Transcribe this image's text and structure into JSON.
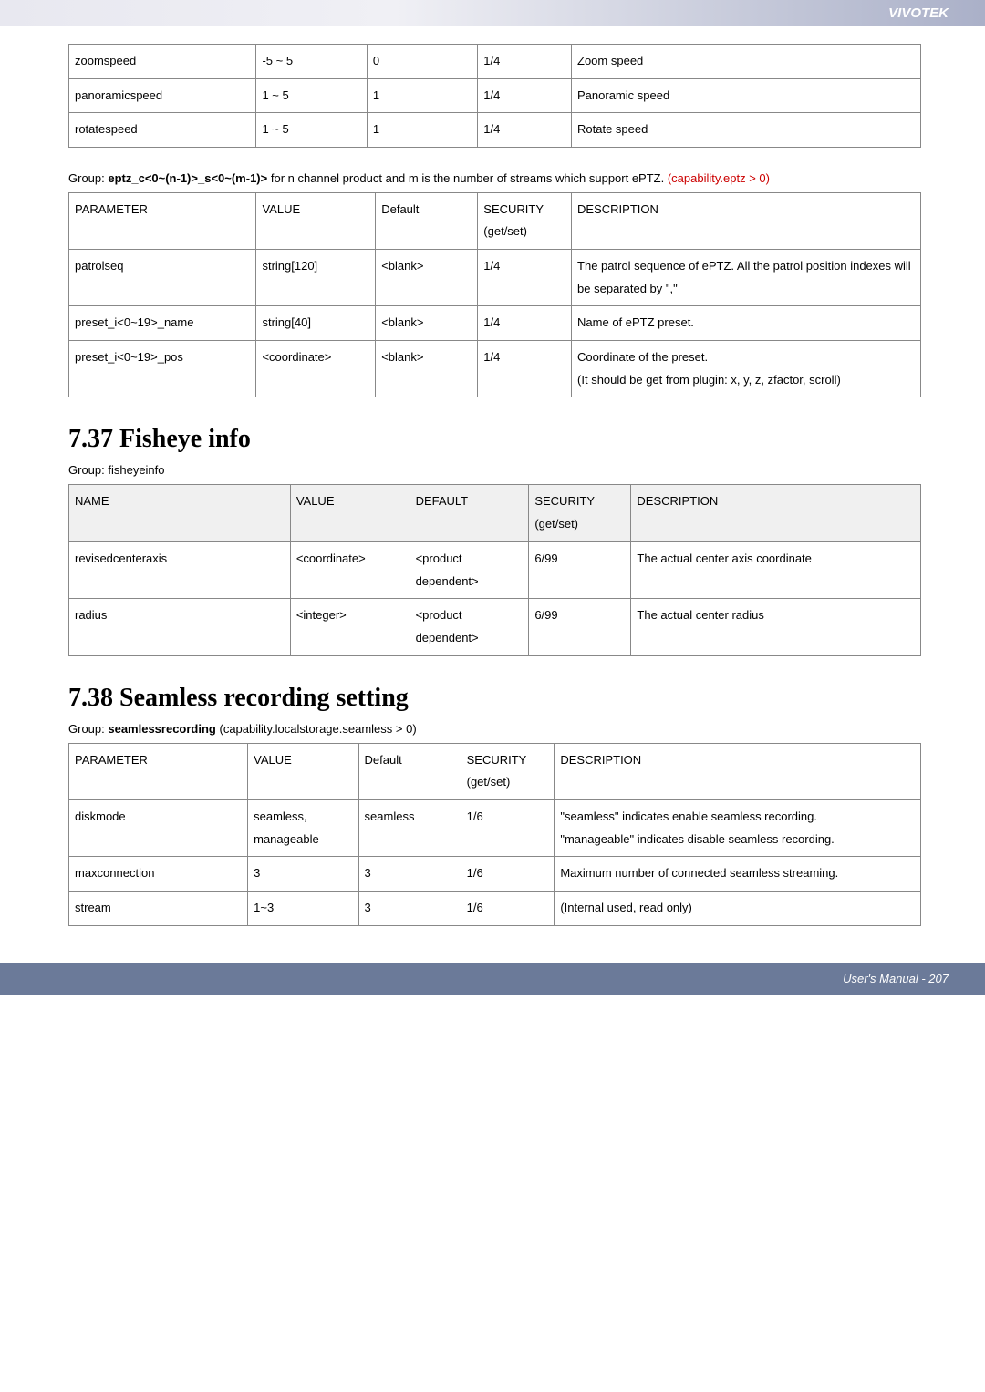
{
  "header": {
    "brand": "VIVOTEK"
  },
  "table1": {
    "rows": [
      {
        "param": "zoomspeed",
        "value": "-5 ~ 5",
        "default": "0",
        "security": "1/4",
        "desc": "Zoom speed"
      },
      {
        "param": "panoramicspeed",
        "value": "1 ~ 5",
        "default": "1",
        "security": "1/4",
        "desc": "Panoramic speed"
      },
      {
        "param": "rotatespeed",
        "value": "1 ~ 5",
        "default": "1",
        "security": "1/4",
        "desc": "Rotate speed"
      }
    ]
  },
  "group2": {
    "prefix": "Group: ",
    "code": "eptz_c<0~(n-1)>_s<0~(m-1)>",
    "mid": " for n channel product and m is the number of streams which support ePTZ. ",
    "cond": "(capability.eptz > 0)"
  },
  "table2": {
    "headers": {
      "param": "PARAMETER",
      "value": "VALUE",
      "default": "Default",
      "security": "SECURITY (get/set)",
      "desc": "DESCRIPTION"
    },
    "rows": [
      {
        "param": "patrolseq",
        "value": "string[120]",
        "default": "<blank>",
        "security": "1/4",
        "desc": "The patrol sequence of ePTZ. All the patrol position indexes will be separated by \",\""
      },
      {
        "param": "preset_i<0~19>_name",
        "value": "string[40]",
        "default": "<blank>",
        "security": "1/4",
        "desc": "Name of ePTZ preset."
      },
      {
        "param": "preset_i<0~19>_pos",
        "value": "<coordinate>",
        "default": "<blank>",
        "security": "1/4",
        "desc": "Coordinate of the preset.\n(It should be get from plugin: x, y, z, zfactor, scroll)"
      }
    ]
  },
  "section737": {
    "title": "7.37 Fisheye info",
    "group": "Group: fisheyeinfo"
  },
  "table3": {
    "headers": {
      "name": "NAME",
      "value": "VALUE",
      "default": "DEFAULT",
      "security": "SECURITY (get/set)",
      "desc": "DESCRIPTION"
    },
    "rows": [
      {
        "name": "revisedcenteraxis",
        "value": "<coordinate>",
        "default": "<product dependent>",
        "security": "6/99",
        "desc": "The actual center axis coordinate"
      },
      {
        "name": "radius",
        "value": "<integer>",
        "default": "<product dependent>",
        "security": "6/99",
        "desc": "The actual center radius"
      }
    ]
  },
  "section738": {
    "title": "7.38 Seamless recording setting",
    "group_prefix": "Group: ",
    "group_code": "seamlessrecording",
    "group_cond": " (capability.localstorage.seamless > 0)"
  },
  "table4": {
    "headers": {
      "param": "PARAMETER",
      "value": "VALUE",
      "default": "Default",
      "security": "SECURITY (get/set)",
      "desc": "DESCRIPTION"
    },
    "rows": [
      {
        "param": "diskmode",
        "value": "seamless, manageable",
        "default": "seamless",
        "security": "1/6",
        "desc": "\"seamless\" indicates enable seamless recording.\n\"manageable\" indicates disable seamless recording."
      },
      {
        "param": "maxconnection",
        "value": "3",
        "default": "3",
        "security": "1/6",
        "desc": "Maximum number of connected seamless streaming."
      },
      {
        "param": "stream",
        "value": "1~3",
        "default": "3",
        "security": "1/6",
        "desc": "(Internal used, read only)"
      }
    ]
  },
  "footer": {
    "text": "User's Manual - 207"
  }
}
